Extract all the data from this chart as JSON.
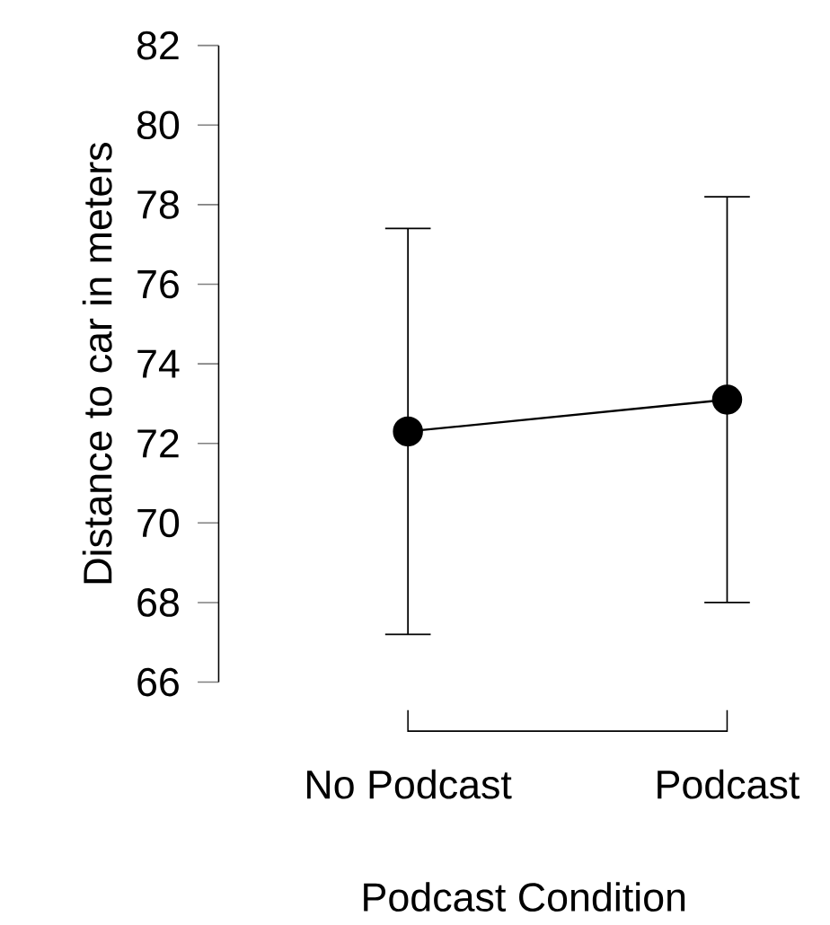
{
  "chart_data": {
    "type": "line",
    "xlabel": "Podcast Condition",
    "ylabel": "Distance to car in meters",
    "categories": [
      "No Podcast",
      "Podcast"
    ],
    "series": [
      {
        "color": "#000000",
        "values": [
          72.3,
          73.1
        ],
        "errors": [
          [
            67.2,
            77.4
          ],
          [
            68.0,
            78.2
          ]
        ]
      }
    ],
    "ylim": [
      66,
      82
    ],
    "yticks": [
      66,
      68,
      70,
      72,
      74,
      76,
      78,
      80,
      82
    ],
    "marker": "circle",
    "line_style": "solid"
  }
}
